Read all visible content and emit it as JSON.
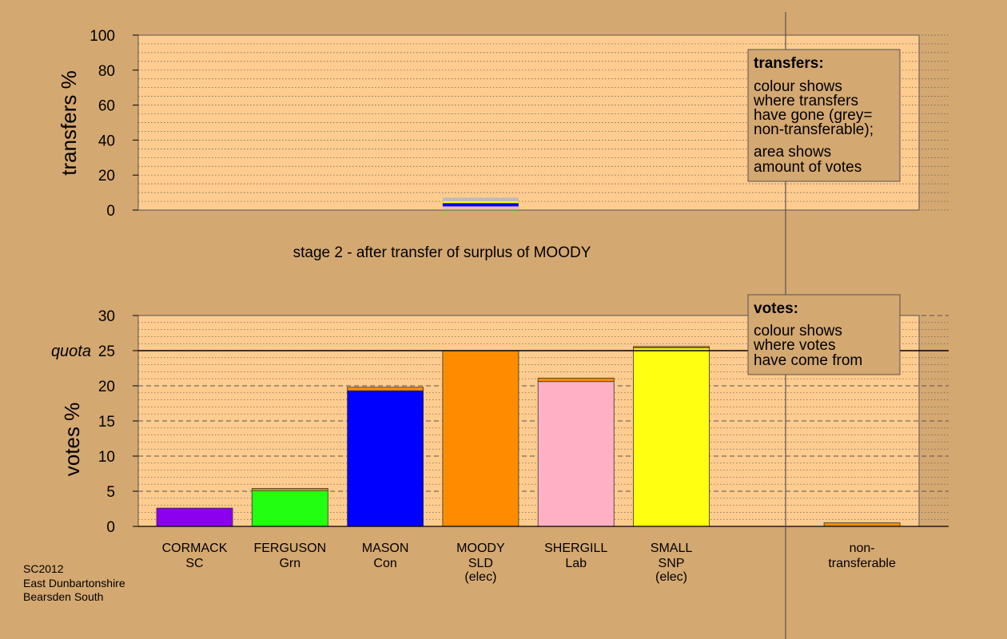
{
  "stage_title": "stage 2 - after transfer of surplus of MOODY",
  "footer": [
    "SC2012",
    "East Dunbartonshire",
    "Bearsden South"
  ],
  "quota_label": "quota",
  "transfers_box": {
    "title": "transfers:",
    "para1": [
      "colour shows",
      "where transfers",
      "have gone (grey=",
      "non-transferable);"
    ],
    "para2": [
      "area shows",
      "amount of votes"
    ]
  },
  "votes_box": {
    "title": "votes:",
    "para1": [
      "colour shows",
      "where votes",
      "have come from"
    ]
  },
  "colors": {
    "background": "#d4a871",
    "plot_background": "#ffcc8f",
    "CORMACK": "#8b00ee",
    "FERGUSON": "#22ff11",
    "MASON": "#0000ff",
    "MOODY": "#ff8c00",
    "SHERGILL": "#ffb0c4",
    "SMALL": "#ffff11",
    "non_transferable": "#bbbbbb"
  },
  "chart_data": [
    {
      "type": "bar",
      "name": "transfers",
      "ylabel": "transfers %",
      "ylim": [
        0,
        100
      ],
      "yticks": [
        0,
        20,
        40,
        60,
        80,
        100
      ],
      "grid": true,
      "category_slot": 3,
      "stacked_segments": [
        {
          "to": "FERGUSON",
          "value": 0.6
        },
        {
          "to": "SHERGILL",
          "value": 1.5
        },
        {
          "to": "MASON",
          "value": 1.9
        },
        {
          "to": "SMALL",
          "value": 1.0
        },
        {
          "to": "non-transferable",
          "value": 2.1
        }
      ]
    },
    {
      "type": "bar",
      "name": "votes",
      "ylabel": "votes %",
      "ylim": [
        0,
        30
      ],
      "yticks": [
        0,
        5,
        10,
        15,
        20,
        25,
        30
      ],
      "quota": 25,
      "grid": true,
      "categories": [
        {
          "name": "CORMACK",
          "party": "SC",
          "status": "",
          "slot": 0,
          "segments": [
            {
              "from": "CORMACK",
              "value": 2.6
            }
          ]
        },
        {
          "name": "FERGUSON",
          "party": "Grn",
          "status": "",
          "slot": 1,
          "segments": [
            {
              "from": "FERGUSON",
              "value": 5.1
            },
            {
              "from": "MOODY",
              "value": 0.3
            }
          ]
        },
        {
          "name": "MASON",
          "party": "Con",
          "status": "",
          "slot": 2,
          "segments": [
            {
              "from": "MASON",
              "value": 19.3
            },
            {
              "from": "MOODY",
              "value": 0.5
            }
          ]
        },
        {
          "name": "MOODY",
          "party": "SLD",
          "status": "(elec)",
          "slot": 3,
          "segments": [
            {
              "from": "MOODY",
              "value": 25.0
            }
          ]
        },
        {
          "name": "SHERGILL",
          "party": "Lab",
          "status": "",
          "slot": 4,
          "segments": [
            {
              "from": "SHERGILL",
              "value": 20.6
            },
            {
              "from": "MOODY",
              "value": 0.5
            }
          ]
        },
        {
          "name": "SMALL",
          "party": "SNP",
          "status": "(elec)",
          "slot": 5,
          "segments": [
            {
              "from": "SMALL",
              "value": 25.4
            },
            {
              "from": "MOODY",
              "value": 0.2
            }
          ]
        },
        {
          "name": "non-",
          "party": "transferable",
          "status": "",
          "slot": 7,
          "segments": [
            {
              "from": "MOODY",
              "value": 0.5
            }
          ]
        }
      ]
    }
  ]
}
